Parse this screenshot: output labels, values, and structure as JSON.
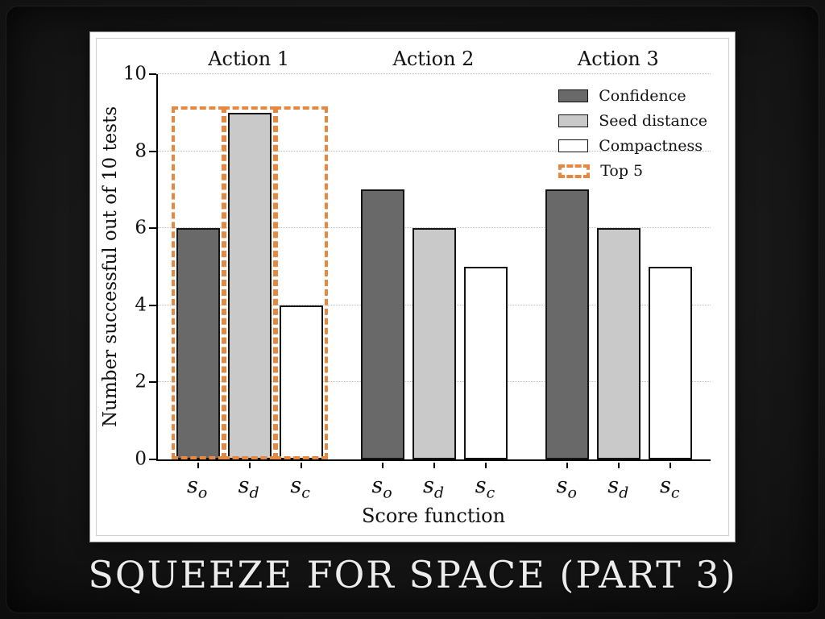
{
  "frame": {
    "title": "SQUEEZE FOR SPACE (PART 3)"
  },
  "chart_data": {
    "type": "bar",
    "title": "",
    "xlabel": "Score function",
    "ylabel": "Number successful out of 10 tests",
    "ylim": [
      0,
      10
    ],
    "yticks": [
      0,
      2,
      4,
      6,
      8,
      10
    ],
    "grid": "dotted-horizontal",
    "legend_position": "top-right",
    "categories": [
      "Action 1",
      "Action 2",
      "Action 3"
    ],
    "bar_tick_labels": [
      {
        "base": "s",
        "sub": "o"
      },
      {
        "base": "s",
        "sub": "d"
      },
      {
        "base": "s",
        "sub": "c"
      }
    ],
    "series": [
      {
        "name": "Confidence",
        "color": "#696969",
        "values": [
          6,
          7,
          7
        ]
      },
      {
        "name": "Seed distance",
        "color": "#c9c9c9",
        "values": [
          9,
          6,
          6
        ]
      },
      {
        "name": "Compactness",
        "color": "#ffffff",
        "values": [
          4,
          5,
          5
        ]
      }
    ],
    "legend": [
      "Confidence",
      "Seed distance",
      "Compactness",
      "Top 5"
    ],
    "annotations": {
      "top5": {
        "label": "Top 5",
        "color": "#e78840",
        "height": 9,
        "applies_to": "Action 1",
        "style": "dashed-box"
      }
    }
  }
}
